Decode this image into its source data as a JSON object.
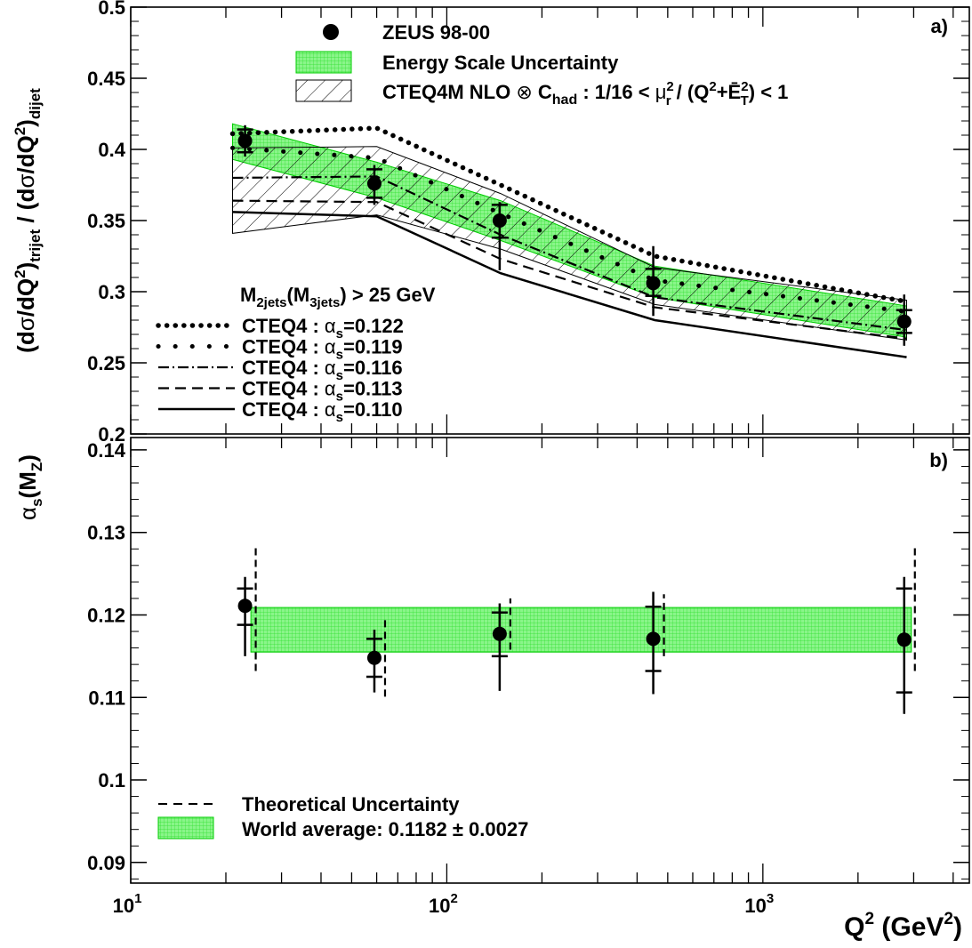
{
  "chart_data": [
    {
      "type": "line",
      "panel": "a)",
      "ylabel_parts": [
        "(d",
        "σ",
        "/dQ",
        "2",
        ")",
        "trijet",
        " / (d",
        "σ",
        "/dQ",
        "2",
        ")",
        "dijet"
      ],
      "xscale": "log",
      "xlim": [
        10,
        4500
      ],
      "ylim": [
        0.2,
        0.5
      ],
      "yticks": [
        "0.2",
        "0.25",
        "0.3",
        "0.35",
        "0.4",
        "0.45",
        "0.5"
      ],
      "legend_top": {
        "data": "ZEUS 98-00",
        "energy": "Energy Scale Uncertainty",
        "theory": {
          "p1": "CTEQ4M NLO ",
          "p2": "⊗",
          "p3": " C",
          "p4": "had",
          "p5": " : 1/16 < ",
          "p6": "μ",
          "p7": "2",
          "p8": "r",
          "p9": " / (Q",
          "p10": "2",
          "p11": "+",
          "p12": "Ē",
          "p13": "2",
          "p14": "T",
          "p15": ") < 1"
        }
      },
      "cut_label": {
        "a": "M",
        "b": "2jets",
        "c": "(M",
        "d": "3jets",
        "e": ") > 25 GeV"
      },
      "legend_alpha": [
        {
          "pre": "CTEQ4 : ",
          "alpha": "α",
          "sub": "s",
          "val": "=0.122",
          "style": "dotted-fine"
        },
        {
          "pre": "CTEQ4 : ",
          "alpha": "α",
          "sub": "s",
          "val": "=0.119",
          "style": "dotted-coarse"
        },
        {
          "pre": "CTEQ4 : ",
          "alpha": "α",
          "sub": "s",
          "val": "=0.116",
          "style": "dash-dot"
        },
        {
          "pre": "CTEQ4 : ",
          "alpha": "α",
          "sub": "s",
          "val": "=0.113",
          "style": "dashed"
        },
        {
          "pre": "CTEQ4 : ",
          "alpha": "α",
          "sub": "s",
          "val": "=0.110",
          "style": "solid"
        }
      ],
      "points": {
        "x": [
          23,
          59,
          147,
          450,
          2800
        ],
        "y": [
          0.406,
          0.376,
          0.35,
          0.306,
          0.279
        ],
        "stat_lo": [
          0.398,
          0.366,
          0.338,
          0.297,
          0.271
        ],
        "stat_hi": [
          0.414,
          0.386,
          0.361,
          0.316,
          0.287
        ],
        "tot_lo": [
          0.395,
          0.361,
          0.315,
          0.283,
          0.262
        ],
        "tot_hi": [
          0.417,
          0.389,
          0.363,
          0.332,
          0.298
        ]
      },
      "energy_band": {
        "x": [
          21,
          60,
          148,
          455,
          2850
        ],
        "lo": [
          0.393,
          0.366,
          0.336,
          0.296,
          0.268
        ],
        "hi": [
          0.418,
          0.391,
          0.364,
          0.318,
          0.29
        ]
      },
      "theory_band": {
        "x": [
          21,
          60,
          148,
          455,
          2850
        ],
        "lo": [
          0.341,
          0.354,
          0.33,
          0.291,
          0.266
        ],
        "hi": [
          0.401,
          0.402,
          0.369,
          0.317,
          0.294
        ]
      },
      "series": [
        {
          "style": "dotted-fine",
          "x": [
            21,
            60,
            148,
            455,
            2850
          ],
          "y": [
            0.411,
            0.415,
            0.375,
            0.325,
            0.293
          ]
        },
        {
          "style": "dotted-coarse",
          "x": [
            21,
            60,
            148,
            455,
            2850
          ],
          "y": [
            0.401,
            0.394,
            0.355,
            0.308,
            0.286
          ]
        },
        {
          "style": "dash-dot",
          "x": [
            21,
            60,
            148,
            455,
            2850
          ],
          "y": [
            0.38,
            0.381,
            0.34,
            0.296,
            0.273
          ]
        },
        {
          "style": "dashed",
          "x": [
            21,
            60,
            148,
            455,
            2850
          ],
          "y": [
            0.364,
            0.363,
            0.323,
            0.289,
            0.267
          ]
        },
        {
          "style": "solid",
          "x": [
            21,
            60,
            148,
            455,
            2850
          ],
          "y": [
            0.356,
            0.353,
            0.313,
            0.28,
            0.254
          ]
        }
      ]
    },
    {
      "type": "scatter",
      "panel": "b)",
      "ylabel_parts": [
        "α",
        "s",
        "(M",
        "Z",
        ")"
      ],
      "xlabel_parts": [
        "Q",
        "2",
        " (GeV",
        "2",
        ")"
      ],
      "xscale": "log",
      "xlim": [
        10,
        4500
      ],
      "ylim": [
        0.0875,
        0.1415
      ],
      "yticks": [
        "0.09",
        "0.1",
        "0.11",
        "0.12",
        "0.13",
        "0.14"
      ],
      "xticks": [
        {
          "base": "10",
          "exp": "1"
        },
        {
          "base": "10",
          "exp": "2"
        },
        {
          "base": "10",
          "exp": "3"
        }
      ],
      "points": {
        "x": [
          23,
          59,
          147,
          450,
          2800
        ],
        "y": [
          0.1211,
          0.1148,
          0.1177,
          0.1171,
          0.117
        ],
        "stat_lo": [
          0.1188,
          0.1125,
          0.115,
          0.1132,
          0.1106
        ],
        "stat_hi": [
          0.1232,
          0.1171,
          0.1203,
          0.121,
          0.1232
        ],
        "tot_lo": [
          0.115,
          0.1106,
          0.1108,
          0.1104,
          0.108
        ],
        "tot_hi": [
          0.1246,
          0.1182,
          0.1214,
          0.1228,
          0.1246
        ],
        "theo_lo": [
          0.1132,
          0.1101,
          0.1158,
          0.115,
          0.1132
        ],
        "theo_hi": [
          0.1281,
          0.1198,
          0.122,
          0.1225,
          0.1281
        ]
      },
      "world_band": {
        "x": [
          24,
          2950
        ],
        "lo": 0.1155,
        "hi": 0.1209
      },
      "legend": {
        "theory": "Theoretical Uncertainty",
        "world": "World average: 0.1182 ± 0.0027"
      }
    }
  ],
  "colors": {
    "band_fill": "#7cf07c",
    "band_edge": "#00cc00",
    "ink": "#000000"
  }
}
